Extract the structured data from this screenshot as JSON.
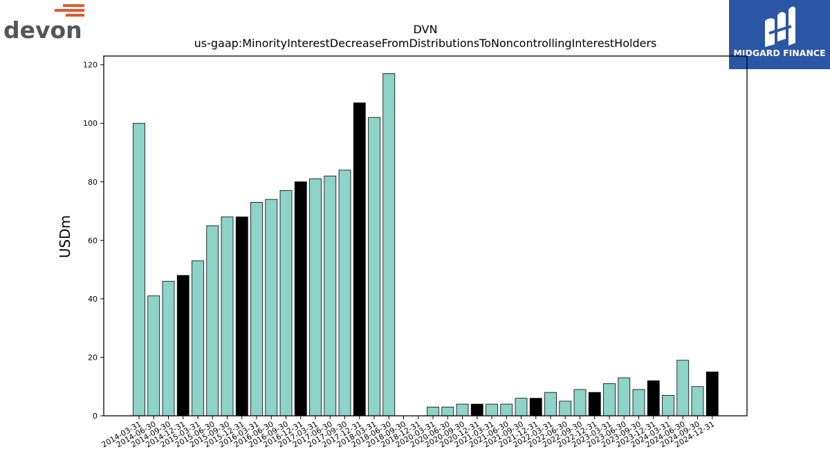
{
  "brand_left": {
    "name": "devon",
    "accent_color": "#E4572E",
    "text_color": "#555555"
  },
  "brand_right": {
    "name": "MIDGARD FINANCE",
    "background": "#2B55A5",
    "text_color": "#ffffff"
  },
  "chart_data": {
    "type": "bar",
    "title": "DVN",
    "subtitle": "us-gaap:MinorityInterestDecreaseFromDistributionsToNoncontrollingInterestHolders",
    "xlabel": "",
    "ylabel": "USDm",
    "ylim": [
      0,
      123
    ],
    "yticks": [
      0,
      20,
      40,
      60,
      80,
      100,
      120
    ],
    "grid": false,
    "colors": {
      "quarter": "#8DD3C7",
      "year_end": "#000000"
    },
    "categories": [
      "2014-03-31",
      "2014-06-30",
      "2014-09-30",
      "2014-12-31",
      "2015-03-31",
      "2015-06-30",
      "2015-09-30",
      "2015-12-31",
      "2016-03-31",
      "2016-06-30",
      "2016-09-30",
      "2016-12-31",
      "2017-03-31",
      "2017-06-30",
      "2017-09-30",
      "2017-12-31",
      "2018-03-31",
      "2018-06-30",
      "2018-09-30",
      "2018-12-31",
      "2020-03-31",
      "2020-06-30",
      "2020-09-30",
      "2020-12-31",
      "2021-03-31",
      "2021-06-30",
      "2021-09-30",
      "2021-12-31",
      "2022-03-31",
      "2022-06-30",
      "2022-09-30",
      "2022-12-31",
      "2023-03-31",
      "2023-06-30",
      "2023-09-30",
      "2023-12-31",
      "2024-03-31",
      "2024-06-30",
      "2024-09-30",
      "2024-12-31"
    ],
    "values": [
      100,
      41,
      46,
      48,
      53,
      65,
      68,
      68,
      73,
      74,
      77,
      80,
      81,
      82,
      84,
      107,
      102,
      117,
      0,
      0,
      3,
      3,
      4,
      4,
      4,
      4,
      6,
      6,
      8,
      5,
      9,
      8,
      11,
      13,
      9,
      12,
      7,
      19,
      10,
      15
    ]
  }
}
